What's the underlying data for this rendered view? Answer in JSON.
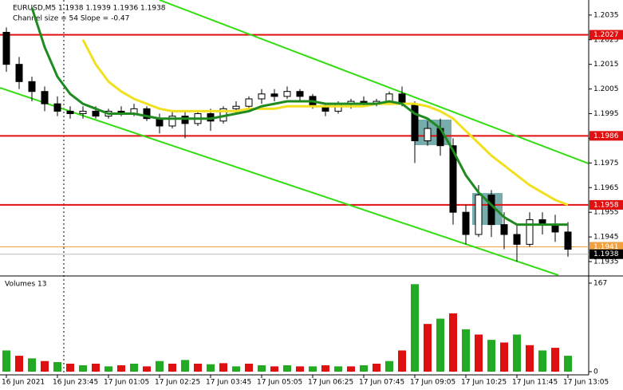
{
  "chart_data": {
    "type": "candlestick",
    "title": "EURUSD,M5  1.1938 1.1939 1.1936 1.1938",
    "subtitle": "Channel size = 54 Slope = -0.47",
    "categories": [
      "16 Jun 2021",
      null,
      null,
      null,
      "16 Jun 23:45",
      null,
      null,
      null,
      "17 Jun 01:05",
      null,
      null,
      null,
      "17 Jun 02:25",
      null,
      null,
      null,
      "17 Jun 03:45",
      null,
      null,
      null,
      "17 Jun 05:05",
      null,
      null,
      null,
      "17 Jun 06:25",
      null,
      null,
      null,
      "17 Jun 07:45",
      null,
      null,
      null,
      "17 Jun 09:05",
      null,
      null,
      null,
      "17 Jun 10:25",
      null,
      null,
      null,
      "17 Jun 11:45",
      null,
      null,
      null,
      "17 Jun 13:05"
    ],
    "open": [
      1.2028,
      1.2015,
      1.2008,
      1.2004,
      1.1999,
      1.1996,
      1.1995,
      1.1996,
      1.1994,
      1.1996,
      1.1995,
      1.1997,
      1.1993,
      1.199,
      1.1994,
      1.1991,
      1.1995,
      1.1992,
      1.1997,
      1.1998,
      1.2001,
      1.2003,
      1.2002,
      1.2004,
      1.2002,
      1.1998,
      1.1996,
      1.1999,
      1.2,
      1.1999,
      1.2,
      1.2003,
      1.1999,
      1.1984,
      1.1989,
      1.1982,
      1.1955,
      1.1946,
      1.1962,
      1.195,
      1.1946,
      1.1942,
      1.1952,
      1.195,
      1.1947
    ],
    "high": [
      1.203,
      1.2018,
      1.201,
      1.2006,
      1.2002,
      1.1998,
      1.1998,
      1.1998,
      1.1997,
      1.1998,
      1.1999,
      1.1998,
      1.1995,
      1.1996,
      1.1996,
      1.1996,
      1.1997,
      1.1998,
      1.2,
      1.2002,
      1.2005,
      1.2005,
      1.2006,
      1.2005,
      1.2003,
      1.1999,
      1.2,
      1.2001,
      1.2002,
      1.2001,
      1.2004,
      1.2006,
      1.2,
      1.1992,
      1.1993,
      1.1985,
      1.1958,
      1.1966,
      1.1964,
      1.1955,
      1.195,
      1.1955,
      1.1955,
      1.1954,
      1.1951
    ],
    "low": [
      1.2012,
      1.2005,
      1.2,
      1.1996,
      1.1994,
      1.1993,
      1.1993,
      1.1993,
      1.1993,
      1.1994,
      1.1994,
      1.1992,
      1.1987,
      1.1989,
      1.1985,
      1.199,
      1.1988,
      1.1991,
      1.1995,
      1.1996,
      1.1999,
      1.2,
      1.2001,
      1.2,
      1.1997,
      1.1994,
      1.1995,
      1.1997,
      1.1998,
      1.1998,
      1.1999,
      1.1998,
      1.1975,
      1.1982,
      1.1978,
      1.195,
      1.1942,
      1.1945,
      1.1945,
      1.194,
      1.1935,
      1.1941,
      1.1946,
      1.1943,
      1.1937
    ],
    "close": [
      1.2015,
      1.2008,
      1.2004,
      1.1999,
      1.1996,
      1.1995,
      1.1996,
      1.1994,
      1.1996,
      1.1995,
      1.1997,
      1.1993,
      1.199,
      1.1994,
      1.1991,
      1.1995,
      1.1992,
      1.1997,
      1.1998,
      1.2001,
      1.2003,
      1.2002,
      1.2004,
      1.2002,
      1.1998,
      1.1996,
      1.1999,
      1.2,
      1.1999,
      1.2,
      1.2003,
      1.1999,
      1.1984,
      1.1989,
      1.1982,
      1.1955,
      1.1946,
      1.1962,
      1.195,
      1.1946,
      1.1942,
      1.1952,
      1.195,
      1.1947,
      1.194
    ],
    "series": [
      {
        "color": "#f0e020",
        "values": [
          null,
          null,
          null,
          null,
          null,
          null,
          1.2025,
          1.2015,
          1.2008,
          1.2004,
          1.2001,
          1.1999,
          1.1997,
          1.1996,
          1.1996,
          1.1996,
          1.1996,
          1.1996,
          1.1996,
          1.1997,
          1.1997,
          1.1997,
          1.1998,
          1.1998,
          1.1998,
          1.1998,
          1.1998,
          1.1998,
          1.1998,
          1.1999,
          1.1999,
          1.1999,
          1.1999,
          1.1998,
          1.1996,
          1.1993,
          1.1988,
          1.1983,
          1.1978,
          1.1974,
          1.197,
          1.1966,
          1.1963,
          1.196,
          1.1958
        ]
      },
      {
        "color": "#1f8a1f",
        "values": [
          null,
          null,
          1.2038,
          1.2022,
          1.201,
          1.2003,
          1.1999,
          1.1997,
          1.1995,
          1.1995,
          1.1995,
          1.1994,
          1.1993,
          1.1993,
          1.1993,
          1.1993,
          1.1993,
          1.1994,
          1.1995,
          1.1996,
          1.1998,
          1.1999,
          1.2,
          1.2,
          1.2,
          1.1999,
          1.1999,
          1.1999,
          1.1999,
          1.1999,
          1.2,
          1.1999,
          1.1995,
          1.1993,
          1.1989,
          1.198,
          1.197,
          1.1963,
          1.1958,
          1.1953,
          1.195,
          1.195,
          1.195,
          1.195,
          1.195
        ]
      }
    ],
    "channel": [
      {
        "color": "#33dd11",
        "start": [
          12,
          1.20411
        ],
        "end": [
          45.6,
          1.19748
        ]
      },
      {
        "color": "#33dd11",
        "start": [
          -0.5,
          1.20055
        ],
        "end": [
          43.25,
          1.19295
        ]
      }
    ],
    "ylim": [
      1.19295,
      1.20411
    ],
    "yticks": [
      1.2035,
      1.2025,
      1.2015,
      1.2005,
      1.1995,
      1.1985,
      1.1975,
      1.1965,
      1.1955,
      1.1945,
      1.1935
    ],
    "levels": [
      {
        "value": 1.2027,
        "color": "#e01010"
      },
      {
        "value": 1.1986,
        "color": "#e01010"
      },
      {
        "value": 1.1958,
        "color": "#e01010"
      },
      {
        "value": 1.1941,
        "color": "#f0a040"
      }
    ],
    "bid": 1.1938,
    "volume_label": "Volumes 13",
    "volumes": [
      40,
      30,
      25,
      20,
      18,
      15,
      12,
      15,
      10,
      12,
      15,
      10,
      20,
      15,
      22,
      15,
      14,
      16,
      10,
      15,
      12,
      10,
      12,
      10,
      10,
      12,
      10,
      10,
      12,
      15,
      20,
      40,
      165,
      90,
      100,
      110,
      80,
      70,
      60,
      55,
      70,
      50,
      40,
      45,
      30
    ],
    "volume_ylim": [
      0,
      167
    ],
    "volume_yticks": [
      167,
      0
    ]
  }
}
